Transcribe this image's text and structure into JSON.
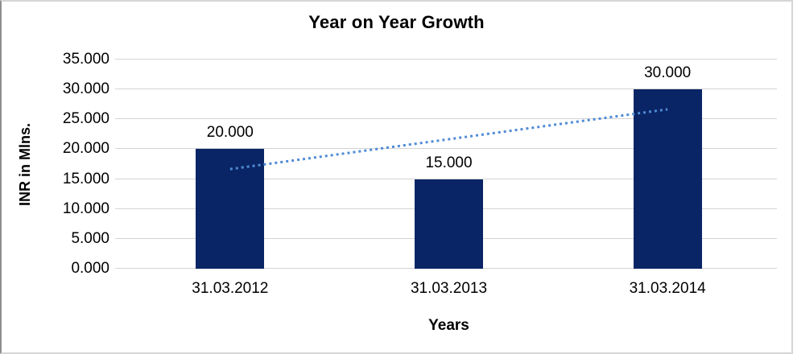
{
  "chart_data": {
    "type": "bar",
    "title": "Year on Year Growth",
    "xlabel": "Years",
    "ylabel": "INR in Mlns.",
    "categories": [
      "31.03.2012",
      "31.03.2013",
      "31.03.2014"
    ],
    "series": [
      {
        "name": "INR in Mlns.",
        "type": "bar",
        "values": [
          20,
          15,
          30
        ],
        "data_labels": [
          "20.000",
          "15.000",
          "30.000"
        ],
        "color": "#0a2565"
      },
      {
        "name": "linear-trendline",
        "type": "dotted-line",
        "values": [
          16.67,
          21.67,
          26.67
        ],
        "color": "#4f8bd5"
      }
    ],
    "ylim": [
      0,
      35
    ],
    "ytick_step": 5,
    "ytick_labels": [
      "0.000",
      "5.000",
      "10.000",
      "15.000",
      "20.000",
      "25.000",
      "30.000",
      "35.000"
    ],
    "grid": true,
    "gridline_color": "#d3d3d3",
    "legend": "none"
  }
}
